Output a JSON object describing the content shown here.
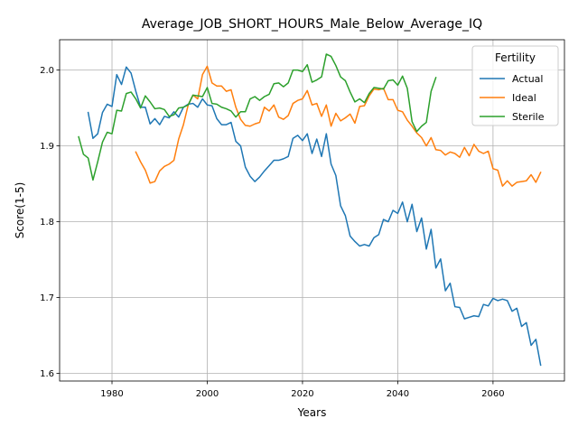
{
  "chart_data": {
    "type": "line",
    "title": "Average_JOB_SHORT_HOURS_Male_Below_Average_IQ",
    "xlabel": "Years",
    "ylabel": "Score(1-5)",
    "xlim": [
      1969,
      2075
    ],
    "ylim": [
      1.59,
      2.04
    ],
    "xticks": [
      1980,
      2000,
      2020,
      2040,
      2060
    ],
    "yticks": [
      1.6,
      1.7,
      1.8,
      1.9,
      2.0
    ],
    "ytick_labels": [
      "1.6",
      "1.7",
      "1.8",
      "1.9",
      "2.0"
    ],
    "grid": true,
    "legend": {
      "title": "Fertility",
      "placement": "top-right"
    },
    "series": [
      {
        "name": "Actual",
        "color": "#1f77b4",
        "x": [
          1975,
          1976,
          1977,
          1978,
          1979,
          1980,
          1981,
          1982,
          1983,
          1984,
          1985,
          1986,
          1987,
          1988,
          1989,
          1990,
          1991,
          1992,
          1993,
          1994,
          1995,
          1996,
          1997,
          1998,
          1999,
          2000,
          2001,
          2002,
          2003,
          2004,
          2005,
          2006,
          2007,
          2008,
          2009,
          2010,
          2011,
          2012,
          2013,
          2014,
          2015,
          2016,
          2017,
          2018,
          2019,
          2020,
          2021,
          2022,
          2023,
          2024,
          2025,
          2026,
          2027,
          2028,
          2029,
          2030,
          2031,
          2032,
          2033,
          2034,
          2035,
          2036,
          2037,
          2038,
          2039,
          2040,
          2041,
          2042,
          2043,
          2044,
          2045,
          2046,
          2047,
          2048,
          2049,
          2050,
          2051,
          2052,
          2053,
          2054,
          2055,
          2056,
          2057,
          2058,
          2059,
          2060,
          2061,
          2062,
          2063,
          2064,
          2065,
          2066,
          2067,
          2068,
          2069,
          2070
        ],
        "y": [
          1.944,
          1.91,
          1.916,
          1.944,
          1.955,
          1.952,
          1.994,
          1.981,
          2.004,
          1.996,
          1.972,
          1.951,
          1.951,
          1.929,
          1.936,
          1.928,
          1.939,
          1.937,
          1.945,
          1.938,
          1.951,
          1.955,
          1.956,
          1.951,
          1.962,
          1.954,
          1.953,
          1.936,
          1.928,
          1.928,
          1.931,
          1.906,
          1.9,
          1.872,
          1.86,
          1.853,
          1.859,
          1.867,
          1.874,
          1.881,
          1.881,
          1.883,
          1.886,
          1.91,
          1.914,
          1.907,
          1.916,
          1.89,
          1.909,
          1.886,
          1.916,
          1.876,
          1.861,
          1.821,
          1.808,
          1.781,
          1.774,
          1.768,
          1.77,
          1.768,
          1.779,
          1.783,
          1.803,
          1.8,
          1.815,
          1.811,
          1.826,
          1.8,
          1.823,
          1.787,
          1.805,
          1.764,
          1.79,
          1.739,
          1.751,
          1.709,
          1.719,
          1.688,
          1.687,
          1.672,
          1.674,
          1.676,
          1.675,
          1.691,
          1.689,
          1.699,
          1.696,
          1.698,
          1.696,
          1.682,
          1.686,
          1.662,
          1.667,
          1.637,
          1.645,
          1.611
        ]
      },
      {
        "name": "Ideal",
        "color": "#ff7f0e",
        "x": [
          1985,
          1986,
          1987,
          1988,
          1989,
          1990,
          1991,
          1992,
          1993,
          1994,
          1995,
          1996,
          1997,
          1998,
          1999,
          2000,
          2001,
          2002,
          2003,
          2004,
          2005,
          2006,
          2007,
          2008,
          2009,
          2010,
          2011,
          2012,
          2013,
          2014,
          2015,
          2016,
          2017,
          2018,
          2019,
          2020,
          2021,
          2022,
          2023,
          2024,
          2025,
          2026,
          2027,
          2028,
          2029,
          2030,
          2031,
          2032,
          2033,
          2034,
          2035,
          2036,
          2037,
          2038,
          2039,
          2040,
          2041,
          2042,
          2043,
          2044,
          2045,
          2046,
          2047,
          2048,
          2049,
          2050,
          2051,
          2052,
          2053,
          2054,
          2055,
          2056,
          2057,
          2058,
          2059,
          2060,
          2061,
          2062,
          2063,
          2064,
          2065,
          2066,
          2067,
          2068,
          2069,
          2070
        ],
        "y": [
          1.892,
          1.879,
          1.868,
          1.851,
          1.853,
          1.867,
          1.873,
          1.876,
          1.881,
          1.909,
          1.928,
          1.954,
          1.967,
          1.962,
          1.994,
          2.005,
          1.983,
          1.979,
          1.979,
          1.972,
          1.974,
          1.951,
          1.935,
          1.927,
          1.926,
          1.929,
          1.931,
          1.951,
          1.946,
          1.954,
          1.938,
          1.935,
          1.94,
          1.956,
          1.96,
          1.962,
          1.973,
          1.954,
          1.956,
          1.939,
          1.954,
          1.926,
          1.943,
          1.933,
          1.937,
          1.942,
          1.93,
          1.952,
          1.953,
          1.966,
          1.975,
          1.974,
          1.976,
          1.961,
          1.961,
          1.947,
          1.945,
          1.934,
          1.926,
          1.917,
          1.911,
          1.9,
          1.911,
          1.895,
          1.894,
          1.888,
          1.892,
          1.89,
          1.885,
          1.898,
          1.887,
          1.902,
          1.893,
          1.89,
          1.893,
          1.87,
          1.868,
          1.847,
          1.854,
          1.847,
          1.852,
          1.853,
          1.854,
          1.862,
          1.852,
          1.865
        ]
      },
      {
        "name": "Sterile",
        "color": "#2ca02c",
        "x": [
          1973,
          1974,
          1975,
          1976,
          1977,
          1978,
          1979,
          1980,
          1981,
          1982,
          1983,
          1984,
          1985,
          1986,
          1987,
          1988,
          1989,
          1990,
          1991,
          1992,
          1993,
          1994,
          1995,
          1996,
          1997,
          1998,
          1999,
          2000,
          2001,
          2002,
          2003,
          2004,
          2005,
          2006,
          2007,
          2008,
          2009,
          2010,
          2011,
          2012,
          2013,
          2014,
          2015,
          2016,
          2017,
          2018,
          2019,
          2020,
          2021,
          2022,
          2023,
          2024,
          2025,
          2026,
          2027,
          2028,
          2029,
          2030,
          2031,
          2032,
          2033,
          2034,
          2035,
          2036,
          2037,
          2038,
          2039,
          2040,
          2041,
          2042,
          2043,
          2044,
          2045,
          2046,
          2047,
          2048
        ],
        "y": [
          1.912,
          1.889,
          1.884,
          1.855,
          1.879,
          1.905,
          1.918,
          1.916,
          1.947,
          1.946,
          1.969,
          1.971,
          1.962,
          1.95,
          1.966,
          1.958,
          1.949,
          1.95,
          1.948,
          1.939,
          1.941,
          1.95,
          1.951,
          1.954,
          1.967,
          1.966,
          1.965,
          1.977,
          1.956,
          1.955,
          1.951,
          1.949,
          1.946,
          1.938,
          1.945,
          1.945,
          1.962,
          1.965,
          1.96,
          1.965,
          1.968,
          1.982,
          1.983,
          1.978,
          1.983,
          2.0,
          2.0,
          1.998,
          2.007,
          1.984,
          1.987,
          1.991,
          2.021,
          2.018,
          2.006,
          1.991,
          1.986,
          1.971,
          1.958,
          1.962,
          1.957,
          1.969,
          1.977,
          1.976,
          1.975,
          1.986,
          1.987,
          1.98,
          1.992,
          1.976,
          1.932,
          1.919,
          1.926,
          1.931,
          1.972,
          1.99
        ]
      }
    ]
  }
}
